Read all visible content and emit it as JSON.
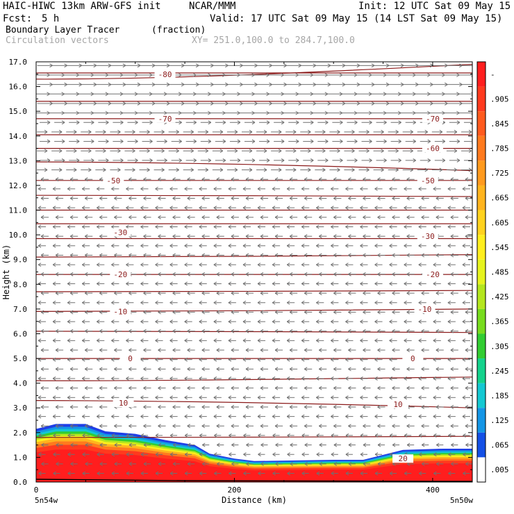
{
  "header": {
    "model": "HAIC-HIWC 13km ARW-GFS init",
    "org": "NCAR/MMM",
    "init": "Init: 12 UTC Sat 09 May 15",
    "fcst_label": "Fcst:",
    "fcst_value": "5 h",
    "valid": "Valid: 17 UTC Sat 09 May 15 (14 LST Sat 09 May 15)",
    "field": "Boundary Layer Tracer",
    "field_units": "(fraction)",
    "vector_label": "Circulation vectors",
    "xy_label": "XY= 251.0,100.0 to 284.7,100.0"
  },
  "chart_data": {
    "type": "heatmap",
    "title": "Boundary Layer Tracer",
    "xlabel": "Distance (km)",
    "ylabel": "Height (km)",
    "xlim": [
      0,
      440
    ],
    "ylim": [
      0,
      17
    ],
    "x_ticks": [
      "0",
      "200",
      "400"
    ],
    "x_tick_values": [
      0,
      200,
      400
    ],
    "x_end_labels": [
      "5n54w",
      "5n50w"
    ],
    "y_ticks": [
      "0.0",
      "1.0",
      "2.0",
      "3.0",
      "4.0",
      "5.0",
      "6.0",
      "7.0",
      "8.0",
      "9.0",
      "10.0",
      "11.0",
      "12.0",
      "13.0",
      "14.0",
      "15.0",
      "16.0",
      "17.0"
    ],
    "y_tick_values": [
      0,
      1,
      2,
      3,
      4,
      5,
      6,
      7,
      8,
      9,
      10,
      11,
      12,
      13,
      14,
      15,
      16,
      17
    ],
    "colorbar_labels": [
      "-",
      ".905",
      ".845",
      ".785",
      ".725",
      ".665",
      ".605",
      ".545",
      ".485",
      ".425",
      ".365",
      ".305",
      ".245",
      ".185",
      ".125",
      ".065",
      ".005"
    ],
    "colorbar_colors": [
      "#ff1e1e",
      "#ff3a1e",
      "#ff5a1e",
      "#ff7a1e",
      "#ff9a1e",
      "#ffb41e",
      "#ffd21e",
      "#ffee1e",
      "#e6f31e",
      "#b4e61e",
      "#78dc1e",
      "#32cd32",
      "#14d28c",
      "#14c8d2",
      "#1496e6",
      "#1450e6",
      "#ffffff"
    ],
    "tracer_top_profile": [
      {
        "x": 0,
        "top": 2.15
      },
      {
        "x": 20,
        "top": 2.35
      },
      {
        "x": 50,
        "top": 2.35
      },
      {
        "x": 70,
        "top": 2.05
      },
      {
        "x": 100,
        "top": 1.95
      },
      {
        "x": 130,
        "top": 1.7
      },
      {
        "x": 160,
        "top": 1.5
      },
      {
        "x": 175,
        "top": 1.15
      },
      {
        "x": 200,
        "top": 0.95
      },
      {
        "x": 220,
        "top": 0.85
      },
      {
        "x": 300,
        "top": 0.9
      },
      {
        "x": 330,
        "top": 0.9
      },
      {
        "x": 350,
        "top": 1.1
      },
      {
        "x": 370,
        "top": 1.3
      },
      {
        "x": 410,
        "top": 1.35
      },
      {
        "x": 440,
        "top": 1.35
      }
    ],
    "contour_labels": [
      {
        "text": "-80",
        "x": 130,
        "y": 16.5
      },
      {
        "text": "-70",
        "x": 130,
        "y": 14.7
      },
      {
        "text": "-70",
        "x": 400,
        "y": 14.7
      },
      {
        "text": "-60",
        "x": 400,
        "y": 13.5
      },
      {
        "text": "-50",
        "x": 78,
        "y": 12.2
      },
      {
        "text": "-50",
        "x": 395,
        "y": 12.2
      },
      {
        "text": "-30",
        "x": 85,
        "y": 10.1
      },
      {
        "text": "-30",
        "x": 395,
        "y": 9.95
      },
      {
        "text": "-20",
        "x": 85,
        "y": 8.4
      },
      {
        "text": "-20",
        "x": 400,
        "y": 8.4
      },
      {
        "text": "-10",
        "x": 85,
        "y": 6.9
      },
      {
        "text": "-10",
        "x": 392,
        "y": 7.0
      },
      {
        "text": "0",
        "x": 95,
        "y": 5.0
      },
      {
        "text": "0",
        "x": 380,
        "y": 5.0
      },
      {
        "text": "10",
        "x": 88,
        "y": 3.2
      },
      {
        "text": "10",
        "x": 365,
        "y": 3.15
      },
      {
        "text": "20",
        "x": 370,
        "y": 0.95
      }
    ],
    "temperature_contours": [
      {
        "y0": 16.55,
        "y1": 16.55
      },
      {
        "y0": 16.3,
        "y1": 16.9
      },
      {
        "y0": 15.4,
        "y1": 15.4
      },
      {
        "y0": 14.7,
        "y1": 14.7
      },
      {
        "y0": 14.05,
        "y1": 14.05
      },
      {
        "y0": 13.5,
        "y1": 13.5
      },
      {
        "y0": 12.95,
        "y1": 12.6
      },
      {
        "y0": 12.2,
        "y1": 12.2
      },
      {
        "y0": 11.6,
        "y1": 11.55
      },
      {
        "y0": 11.0,
        "y1": 11.0
      },
      {
        "y0": 10.45,
        "y1": 10.45
      },
      {
        "y0": 9.85,
        "y1": 9.85
      },
      {
        "y0": 9.1,
        "y1": 9.2
      },
      {
        "y0": 8.4,
        "y1": 8.4
      },
      {
        "y0": 7.7,
        "y1": 7.75
      },
      {
        "y0": 6.9,
        "y1": 7.0
      },
      {
        "y0": 6.1,
        "y1": 6.05
      },
      {
        "y0": 5.0,
        "y1": 5.0
      },
      {
        "y0": 4.1,
        "y1": 4.25
      },
      {
        "y0": 3.3,
        "y1": 3.0
      },
      {
        "y0": 1.8,
        "y1": 1.85
      }
    ],
    "vector_field": [
      {
        "zmin": 12.5,
        "zmax": 17.0,
        "direction": "east"
      },
      {
        "zmin": 0.0,
        "zmax": 12.5,
        "direction": "west"
      }
    ],
    "vector_columns": 30,
    "vector_rows": 44
  },
  "colors": {
    "contour": "#8b1a1a",
    "vector": "#707070",
    "tracer_edge": "#1f3ee6",
    "frame": "#000000",
    "grey_text": "#a6a6a6"
  }
}
